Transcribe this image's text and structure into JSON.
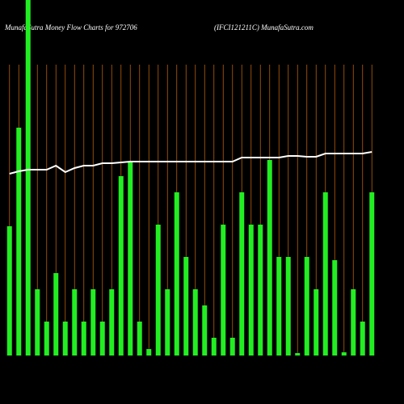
{
  "chart_data": {
    "type": "bar",
    "title": "MunafaSutra  Money Flow  Charts for 972706",
    "subtitle": "(IFCI121211C) MunafaSutra.com",
    "categories": [
      null,
      null,
      null,
      null,
      null,
      null,
      null,
      null,
      null,
      null,
      null,
      null,
      null,
      null,
      null,
      null,
      null,
      null,
      null,
      null,
      null,
      null,
      null,
      null,
      null,
      null,
      null,
      null,
      null,
      null,
      null,
      null,
      null,
      null,
      null,
      null,
      null,
      null,
      null,
      null
    ],
    "ylim": [
      0,
      440
    ],
    "grid_color": "#b8600b",
    "series": [
      {
        "type": "bar",
        "color": "#22ee22",
        "values": [
          160,
          282,
          460,
          82,
          42,
          102,
          42,
          82,
          42,
          82,
          42,
          82,
          222,
          240,
          42,
          8,
          162,
          82,
          202,
          122,
          82,
          62,
          22,
          162,
          22,
          202,
          162,
          162,
          242,
          122,
          122,
          3,
          122,
          82,
          202,
          118,
          4,
          82,
          42,
          202
        ]
      },
      {
        "type": "line",
        "color": "#ffffff",
        "values": [
          225,
          228,
          230,
          230,
          230,
          235,
          227,
          232,
          235,
          235,
          238,
          238,
          239,
          240,
          240,
          240,
          240,
          240,
          240,
          240,
          240,
          240,
          240,
          240,
          240,
          245,
          245,
          245,
          245,
          245,
          247,
          247,
          246,
          246,
          250,
          250,
          250,
          250,
          250,
          252
        ]
      }
    ]
  }
}
